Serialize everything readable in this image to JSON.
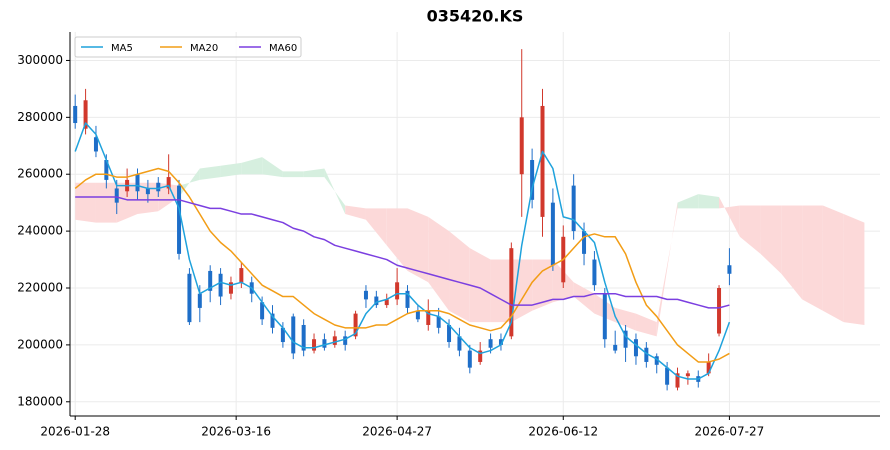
{
  "chart_data": {
    "type": "candlestick",
    "title": "035420.KS",
    "x": [
      0,
      2,
      4,
      6,
      8,
      10,
      12,
      14,
      16,
      18,
      20,
      22,
      24,
      26,
      28,
      30,
      32,
      34,
      36,
      38,
      40,
      42,
      44,
      46,
      48,
      50,
      52,
      54,
      56,
      58,
      60,
      62,
      64,
      66,
      68,
      70,
      72,
      74,
      76,
      78,
      80,
      82,
      84,
      86,
      88,
      90,
      92,
      94,
      96,
      98,
      100,
      102,
      104,
      106,
      108,
      110,
      112,
      114,
      116,
      118,
      120,
      122,
      124,
      126
    ],
    "open": [
      284000,
      276000,
      273000,
      265000,
      255000,
      254000,
      260000,
      255000,
      257000,
      255000,
      256000,
      225000,
      218000,
      226000,
      225000,
      218000,
      222000,
      222000,
      215000,
      211000,
      206000,
      210000,
      207000,
      198000,
      202000,
      200000,
      203000,
      203000,
      219000,
      217000,
      214000,
      216000,
      219000,
      212000,
      207000,
      210000,
      207000,
      203000,
      198000,
      194000,
      202000,
      202000,
      203000,
      260000,
      265000,
      245000,
      250000,
      222000,
      256000,
      240000,
      230000,
      218000,
      200000,
      205000,
      202000,
      199000,
      196000,
      192000,
      185000,
      189000,
      189000,
      190000,
      204000,
      228000
    ],
    "high": [
      288000,
      290000,
      277000,
      267000,
      258000,
      262000,
      262000,
      258000,
      259000,
      267000,
      258000,
      227000,
      221000,
      228000,
      227000,
      224000,
      229000,
      224000,
      217000,
      214000,
      208000,
      211000,
      209000,
      204000,
      204000,
      205000,
      205000,
      212000,
      221000,
      219000,
      218000,
      227000,
      221000,
      214000,
      216000,
      213000,
      209000,
      206000,
      200000,
      201000,
      204000,
      204000,
      236000,
      304000,
      269000,
      290000,
      255000,
      242000,
      260000,
      243000,
      233000,
      220000,
      205000,
      207000,
      204000,
      201000,
      197000,
      194000,
      192000,
      191000,
      191000,
      197000,
      221000,
      234000
    ],
    "low": [
      276000,
      274000,
      266000,
      255000,
      246000,
      252000,
      251000,
      250000,
      252000,
      253000,
      230000,
      207000,
      208000,
      215000,
      214000,
      216000,
      220000,
      215000,
      207000,
      204000,
      199000,
      195000,
      196000,
      197000,
      198000,
      199000,
      198000,
      202000,
      213000,
      213000,
      213000,
      214000,
      211000,
      208000,
      205000,
      204000,
      199000,
      196000,
      190000,
      193000,
      197000,
      198000,
      202000,
      245000,
      248000,
      238000,
      226000,
      220000,
      237000,
      228000,
      219000,
      199000,
      197000,
      194000,
      193000,
      192000,
      190000,
      184000,
      184000,
      186000,
      185000,
      189000,
      203000,
      221000
    ],
    "close": [
      278000,
      286000,
      268000,
      258000,
      250000,
      258000,
      254000,
      253000,
      254000,
      259000,
      232000,
      208000,
      213000,
      219000,
      217000,
      222000,
      227000,
      218000,
      209000,
      206000,
      201000,
      197000,
      198000,
      202000,
      199000,
      203000,
      200000,
      211000,
      216000,
      214000,
      216000,
      222000,
      213000,
      209000,
      212000,
      206000,
      201000,
      198000,
      192000,
      198000,
      199000,
      200000,
      234000,
      280000,
      251000,
      284000,
      228000,
      238000,
      240000,
      232000,
      221000,
      202000,
      198000,
      199000,
      196000,
      194000,
      193000,
      186000,
      190000,
      190000,
      187000,
      194000,
      220000,
      225000
    ],
    "up_color": "#d1382c",
    "down_color": "#1e6ec8",
    "series": [
      {
        "name": "MA5",
        "color": "#1fa2dc",
        "values": [
          268000,
          278000,
          274000,
          265000,
          256000,
          256000,
          256000,
          255000,
          255000,
          256000,
          248000,
          230000,
          218000,
          220000,
          222000,
          221000,
          222000,
          220000,
          215000,
          210000,
          206000,
          201000,
          199000,
          199000,
          200000,
          201000,
          202000,
          204000,
          211000,
          215000,
          216000,
          218000,
          218000,
          214000,
          211000,
          210000,
          207000,
          203000,
          199000,
          197000,
          198000,
          200000,
          208000,
          235000,
          255000,
          268000,
          262000,
          245000,
          244000,
          240000,
          236000,
          222000,
          210000,
          203000,
          200000,
          197000,
          195000,
          192000,
          189000,
          188000,
          188000,
          190000,
          198000,
          208000
        ]
      },
      {
        "name": "MA20",
        "color": "#f29d16",
        "values": [
          255000,
          258000,
          260000,
          260000,
          259000,
          259000,
          260000,
          261000,
          262000,
          261000,
          257000,
          252000,
          246000,
          240000,
          236000,
          233000,
          229000,
          225000,
          221000,
          219000,
          217000,
          217000,
          214000,
          211000,
          209000,
          207000,
          206000,
          206000,
          206000,
          207000,
          207000,
          209000,
          211000,
          212000,
          212000,
          212000,
          211000,
          209000,
          207000,
          206000,
          205000,
          206000,
          210000,
          216000,
          222000,
          226000,
          228000,
          230000,
          234000,
          238000,
          239000,
          238000,
          238000,
          232000,
          222000,
          214000,
          210000,
          205000,
          200000,
          197000,
          194000,
          194000,
          195000,
          197000
        ]
      },
      {
        "name": "MA60",
        "color": "#7b3fe0",
        "values": [
          252000,
          252000,
          252000,
          252000,
          252000,
          251000,
          251000,
          251000,
          251000,
          251000,
          251000,
          250000,
          249000,
          248000,
          248000,
          247000,
          246000,
          246000,
          245000,
          244000,
          243000,
          241000,
          240000,
          238000,
          237000,
          235000,
          234000,
          233000,
          232000,
          231000,
          230000,
          228000,
          227000,
          226000,
          225000,
          224000,
          223000,
          222000,
          221000,
          220000,
          218000,
          216000,
          214000,
          214000,
          214000,
          215000,
          216000,
          216000,
          217000,
          217000,
          218000,
          218000,
          218000,
          217000,
          217000,
          217000,
          217000,
          216000,
          216000,
          215000,
          214000,
          213000,
          213000,
          214000
        ]
      }
    ],
    "cloud": {
      "x": [
        0,
        4,
        8,
        12,
        16,
        20,
        24,
        28,
        32,
        36,
        40,
        44,
        48,
        52,
        56,
        60,
        64,
        68,
        72,
        76,
        80,
        84,
        88,
        92,
        96,
        100,
        104,
        108,
        112,
        116,
        120,
        124,
        128,
        132,
        136,
        140,
        144,
        148,
        152
      ],
      "span_a": [
        244000,
        243000,
        243000,
        246000,
        247000,
        252000,
        262000,
        263000,
        264000,
        266000,
        261000,
        261000,
        262000,
        246000,
        244000,
        235000,
        226000,
        222000,
        212000,
        208000,
        208000,
        208000,
        212000,
        215000,
        217000,
        211000,
        208000,
        205000,
        203000,
        250000,
        253000,
        252000,
        238000,
        232000,
        225000,
        216000,
        212000,
        208000,
        207000
      ],
      "span_b": [
        257000,
        257000,
        257000,
        257000,
        257000,
        256000,
        258000,
        259000,
        260000,
        260000,
        259000,
        259000,
        259000,
        249000,
        248000,
        248000,
        248000,
        245000,
        240000,
        234000,
        230000,
        230000,
        230000,
        230000,
        222000,
        218000,
        213000,
        211000,
        208000,
        248000,
        248000,
        248000,
        249000,
        249000,
        249000,
        249000,
        249000,
        246000,
        243000
      ],
      "up_color": "#d6efdf",
      "down_color": "#fcd9d9"
    },
    "xlim": [
      -1,
      155
    ],
    "xticks": [
      {
        "value": 0,
        "label": "2026-01-28"
      },
      {
        "value": 31,
        "label": "2026-03-16"
      },
      {
        "value": 62,
        "label": "2026-04-27"
      },
      {
        "value": 94,
        "label": "2026-06-12"
      },
      {
        "value": 126,
        "label": "2026-07-27"
      }
    ],
    "ylim": [
      175000,
      310000
    ],
    "yticks": [
      180000,
      200000,
      220000,
      240000,
      260000,
      280000,
      300000
    ],
    "grid": true,
    "legend": "upper left"
  }
}
